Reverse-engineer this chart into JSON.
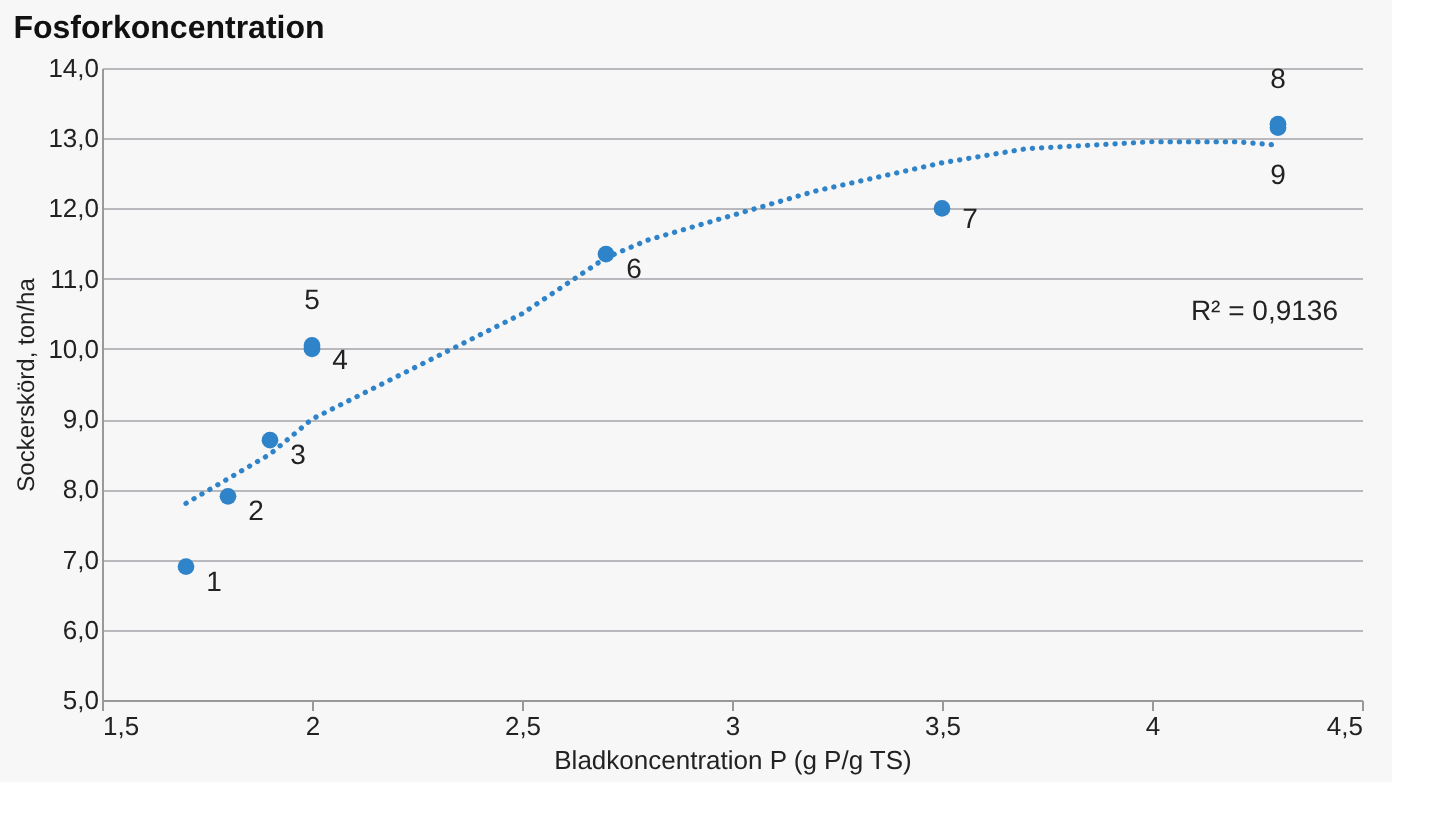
{
  "chart_data": {
    "type": "scatter",
    "title": "Fosforkoncentration",
    "xlabel": "Bladkoncentration P (g P/g TS)",
    "ylabel": "Sockerskörd, ton/ha",
    "series": [
      {
        "color": "#2f83c8",
        "marker": "circle",
        "x": [
          1.7,
          1.8,
          1.9,
          2.0,
          2.0,
          2.7,
          3.5,
          4.3,
          4.3
        ],
        "values": [
          6.9,
          7.9,
          8.7,
          10.0,
          10.05,
          11.35,
          12.0,
          13.2,
          13.15
        ]
      },
      {
        "type": "line",
        "line_style": "dotted",
        "marker": "none",
        "color": "#2f83c8",
        "x": [
          1.7,
          1.9,
          2.0,
          2.2,
          2.5,
          2.7,
          2.8,
          3.0,
          3.2,
          3.5,
          3.7,
          4.0,
          4.2,
          4.3
        ],
        "values": [
          7.8,
          8.5,
          9.0,
          9.6,
          10.5,
          11.3,
          11.55,
          11.9,
          12.25,
          12.65,
          12.85,
          12.95,
          12.95,
          12.9
        ]
      }
    ],
    "annotations": [
      {
        "text": "1",
        "x": 1.7,
        "y": 6.9
      },
      {
        "text": "2",
        "x": 1.8,
        "y": 7.9
      },
      {
        "text": "3",
        "x": 1.9,
        "y": 8.7
      },
      {
        "text": "4",
        "x": 2.0,
        "y": 10.0
      },
      {
        "text": "5",
        "x": 2.0,
        "y": 10.05
      },
      {
        "text": "6",
        "x": 2.7,
        "y": 11.35
      },
      {
        "text": "7",
        "x": 3.5,
        "y": 12.0
      },
      {
        "text": "8",
        "x": 4.3,
        "y": 13.2
      },
      {
        "text": "9",
        "x": 4.3,
        "y": 13.15
      },
      "R² = 0,9136"
    ],
    "xlim": [
      1.5,
      4.5
    ],
    "xticks": [
      {
        "value": 1.5,
        "label": "1,5"
      },
      2,
      {
        "value": 2.5,
        "label": "2,5"
      },
      3,
      {
        "value": 3.5,
        "label": "3,5"
      },
      4,
      {
        "value": 4.5,
        "label": "4,5"
      }
    ],
    "ylim": [
      5,
      14
    ],
    "yticks": [
      {
        "value": 5,
        "label": "5,0"
      },
      {
        "value": 6,
        "label": "6,0"
      },
      {
        "value": 7,
        "label": "7,0"
      },
      {
        "value": 8,
        "label": "8,0"
      },
      {
        "value": 9,
        "label": "9,0"
      },
      {
        "value": 10,
        "label": "10,0"
      },
      {
        "value": 11,
        "label": "11,0"
      },
      {
        "value": 12,
        "label": "12,0"
      },
      {
        "value": 13,
        "label": "13,0"
      },
      {
        "value": 14,
        "label": "14,0"
      }
    ],
    "grid": "y"
  }
}
